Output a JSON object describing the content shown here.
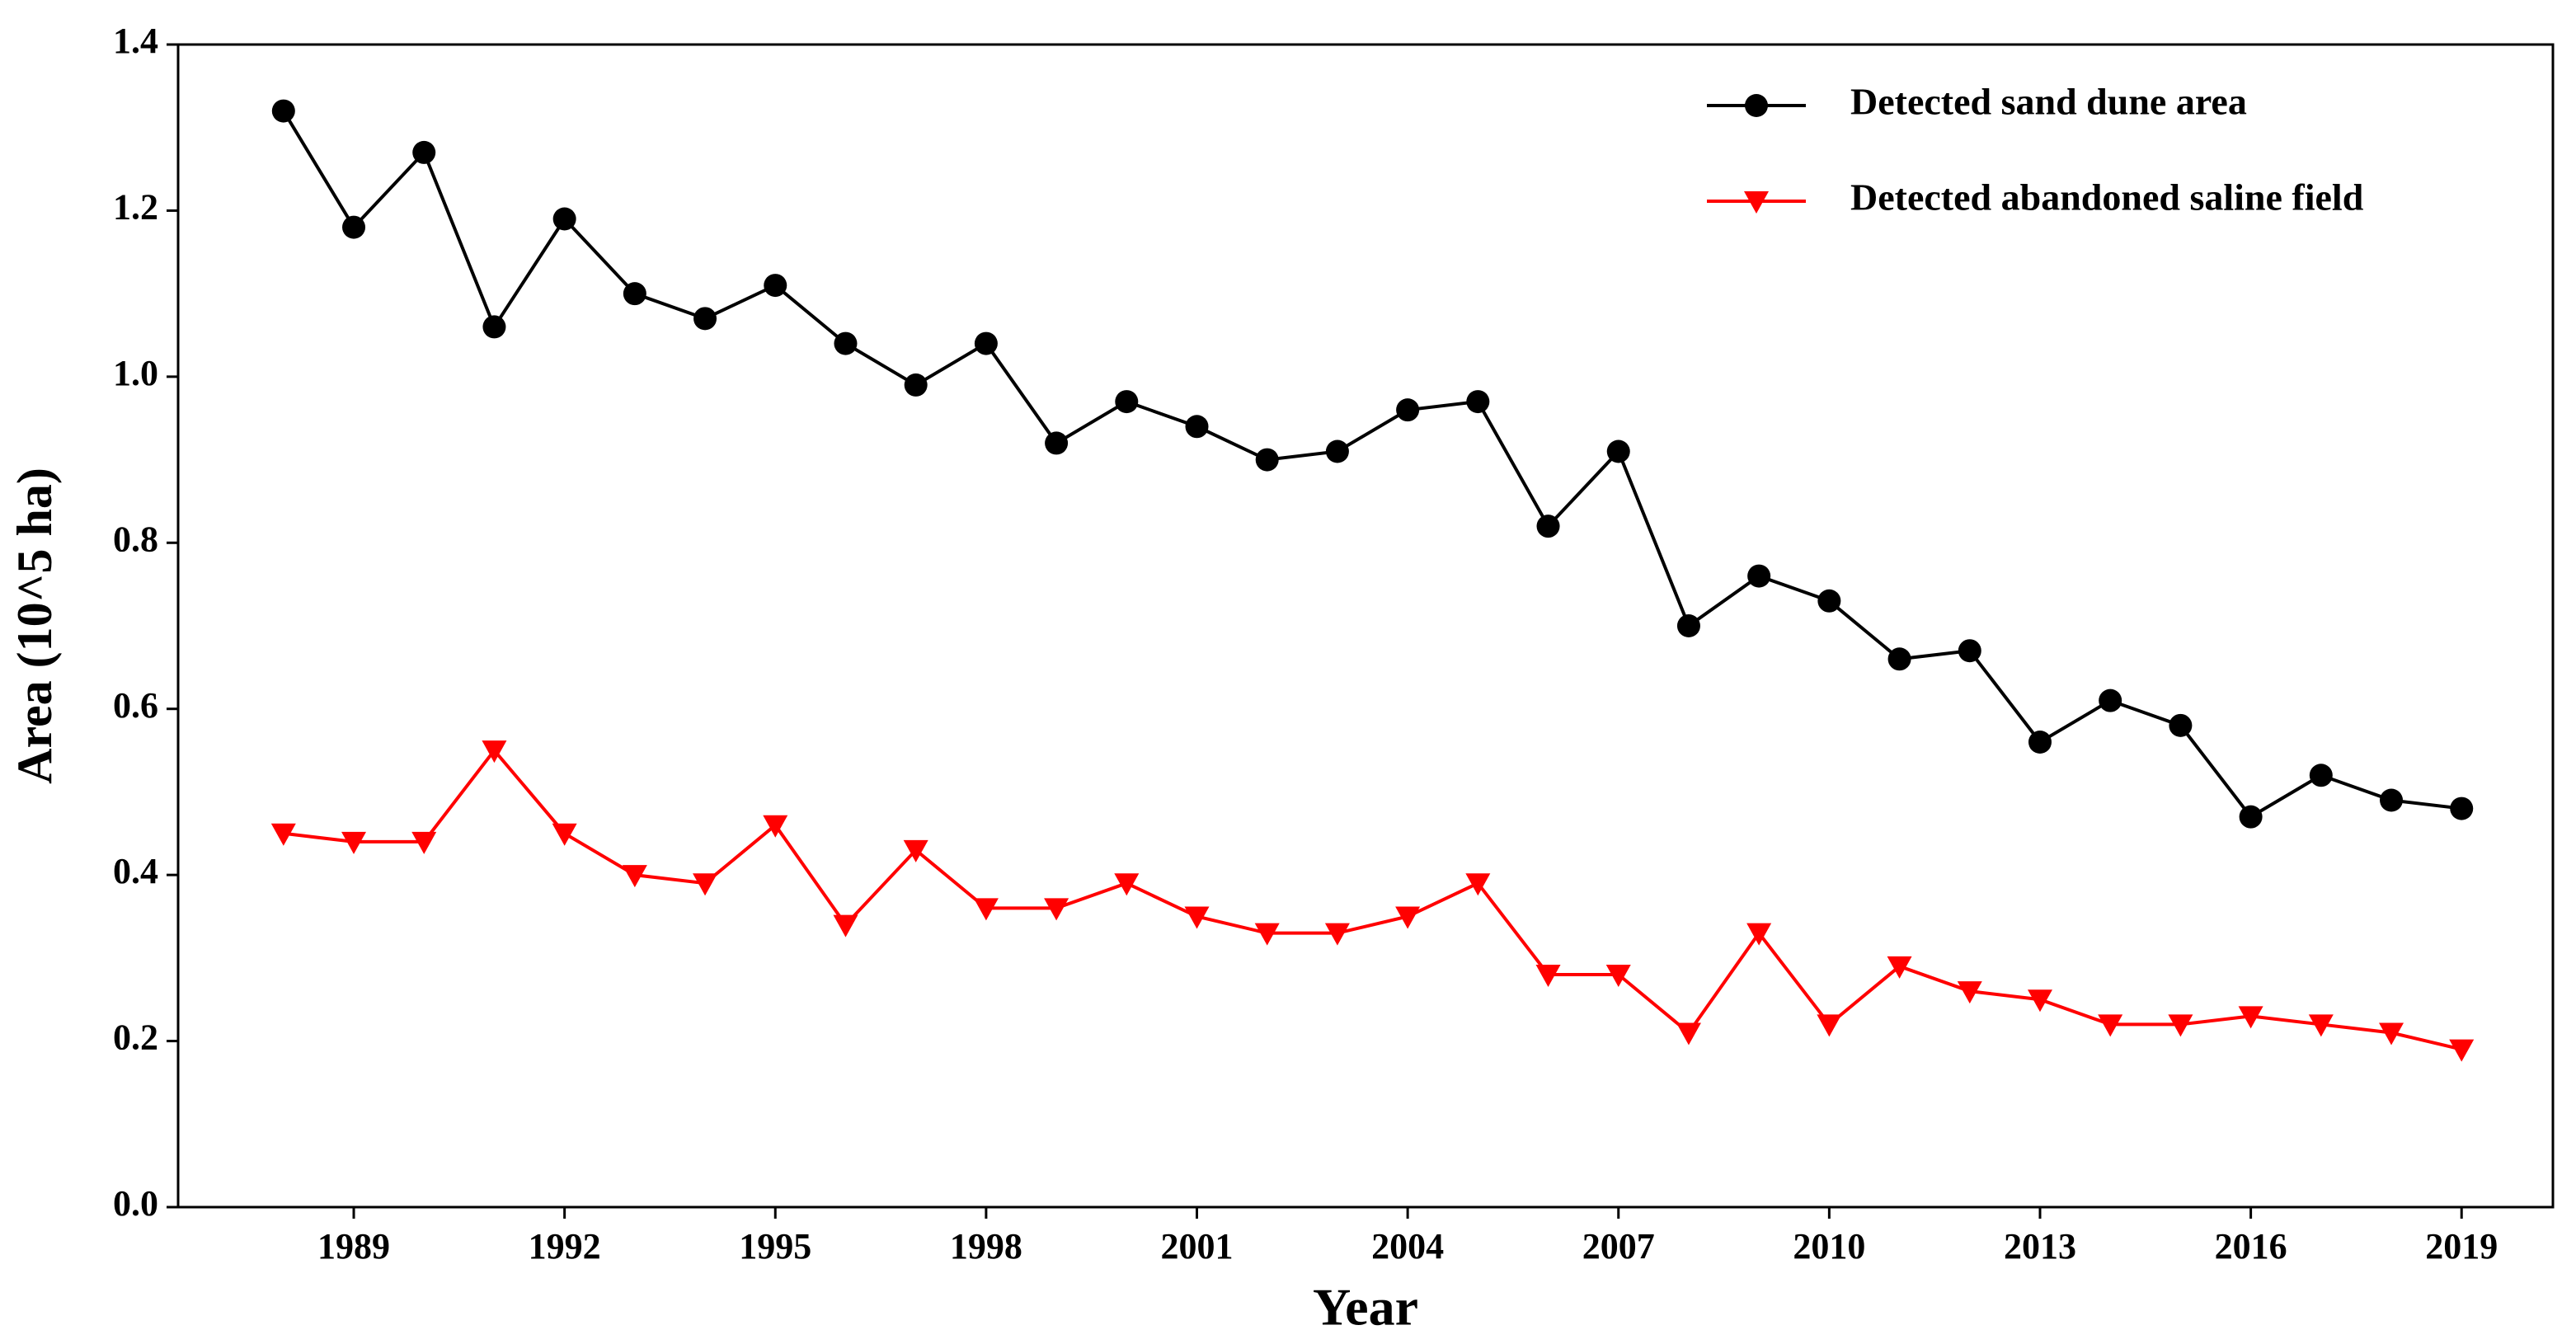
{
  "chart_data": {
    "type": "line",
    "x_label": "Year",
    "y_label": "Area (10^5 ha)",
    "x": [
      1988,
      1989,
      1990,
      1991,
      1992,
      1993,
      1994,
      1995,
      1996,
      1997,
      1998,
      1999,
      2000,
      2001,
      2002,
      2003,
      2004,
      2005,
      2006,
      2007,
      2008,
      2009,
      2010,
      2011,
      2012,
      2013,
      2014,
      2015,
      2016,
      2017,
      2018,
      2019
    ],
    "series": [
      {
        "name": "Detected sand dune area",
        "color": "#000000",
        "marker": "circle",
        "values": [
          1.32,
          1.18,
          1.27,
          1.06,
          1.19,
          1.1,
          1.07,
          1.11,
          1.04,
          0.99,
          1.04,
          0.92,
          0.97,
          0.94,
          0.9,
          0.91,
          0.96,
          0.97,
          0.82,
          0.91,
          0.7,
          0.76,
          0.73,
          0.66,
          0.67,
          0.56,
          0.61,
          0.58,
          0.47,
          0.52,
          0.49,
          0.48
        ]
      },
      {
        "name": "Detected abandoned saline field",
        "color": "#ff0000",
        "marker": "triangle-down",
        "values": [
          0.45,
          0.44,
          0.44,
          0.55,
          0.45,
          0.4,
          0.39,
          0.46,
          0.34,
          0.43,
          0.36,
          0.36,
          0.39,
          0.35,
          0.33,
          0.33,
          0.35,
          0.39,
          0.28,
          0.28,
          0.21,
          0.33,
          0.22,
          0.29,
          0.26,
          0.25,
          0.22,
          0.22,
          0.23,
          0.22,
          0.21,
          0.19
        ]
      }
    ],
    "xlim": [
      1986.5,
      2020.3
    ],
    "xticks": [
      1989,
      1992,
      1995,
      1998,
      2001,
      2004,
      2007,
      2010,
      2013,
      2016,
      2019
    ],
    "ylim": [
      0,
      1.4
    ],
    "yticks": [
      {
        "value": 0,
        "label": "0.0"
      },
      0.2,
      0.4,
      0.6,
      0.8,
      {
        "value": 1,
        "label": "1.0"
      },
      1.2,
      1.4
    ],
    "grid": false,
    "legend": "upper right"
  }
}
